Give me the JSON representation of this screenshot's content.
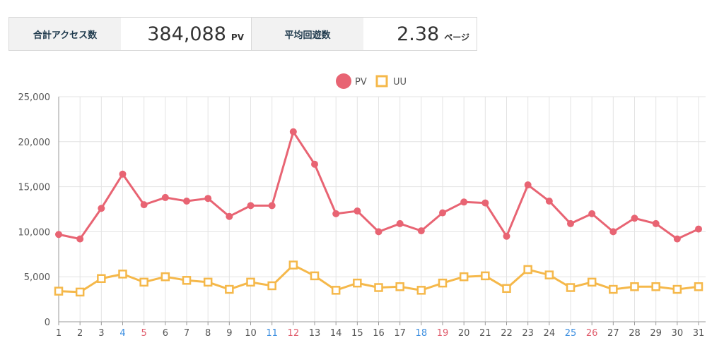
{
  "stats": {
    "total_access": {
      "label": "合計アクセス数",
      "value": "384,088",
      "unit": "PV"
    },
    "avg_pages": {
      "label": "平均回遊数",
      "value": "2.38",
      "unit": "ページ"
    }
  },
  "colors": {
    "pv": "#e86473",
    "uu": "#f5b84a",
    "grid": "#e3e3e3",
    "axis": "#999999",
    "tick_default": "#555555",
    "tick_saturday": "#3b8ee0",
    "tick_sunday": "#e05a6a"
  },
  "chart_data": {
    "type": "line",
    "categories": [
      "1",
      "2",
      "3",
      "4",
      "5",
      "6",
      "7",
      "8",
      "9",
      "10",
      "11",
      "12",
      "13",
      "14",
      "15",
      "16",
      "17",
      "18",
      "19",
      "20",
      "21",
      "22",
      "23",
      "24",
      "25",
      "26",
      "27",
      "28",
      "29",
      "30",
      "31"
    ],
    "category_day_types": [
      "w",
      "w",
      "w",
      "sat",
      "sun",
      "w",
      "w",
      "w",
      "w",
      "w",
      "sat",
      "sun",
      "w",
      "w",
      "w",
      "w",
      "w",
      "sat",
      "sun",
      "w",
      "w",
      "w",
      "w",
      "w",
      "sat",
      "sun",
      "w",
      "w",
      "w",
      "w",
      "w"
    ],
    "series": [
      {
        "name": "PV",
        "marker": "circle",
        "values": [
          9700,
          9200,
          12600,
          16400,
          13000,
          13800,
          13400,
          13700,
          11700,
          12900,
          12900,
          21100,
          17500,
          12000,
          12300,
          10000,
          10900,
          10100,
          12100,
          13300,
          13200,
          9500,
          15200,
          13400,
          10900,
          12000,
          10000,
          11500,
          10900,
          9200,
          10300
        ]
      },
      {
        "name": "UU",
        "marker": "square",
        "values": [
          3400,
          3300,
          4800,
          5300,
          4400,
          5000,
          4600,
          4400,
          3600,
          4400,
          4000,
          6300,
          5100,
          3500,
          4300,
          3800,
          3900,
          3500,
          4300,
          5000,
          5100,
          3700,
          5800,
          5200,
          3800,
          4400,
          3600,
          3900,
          3900,
          3600,
          3900
        ]
      }
    ],
    "y_ticks": [
      "0",
      "5,000",
      "10,000",
      "15,000",
      "20,000",
      "25,000"
    ],
    "ylim": [
      0,
      25000
    ],
    "grid": true,
    "legend": "top-center",
    "title": "",
    "xlabel": "",
    "ylabel": ""
  }
}
